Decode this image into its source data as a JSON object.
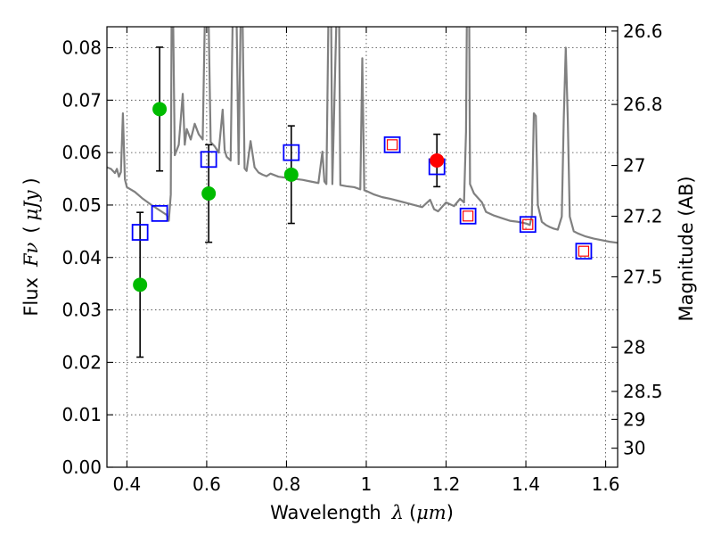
{
  "chart_data": {
    "type": "scatter",
    "title": "",
    "xlabel": {
      "prefix": "Wavelength",
      "symbol": "λ",
      "unit_open": "(",
      "unit": "μm",
      "unit_close": ")"
    },
    "ylabel": {
      "prefix": "Flux",
      "symbol": "Fν",
      "unit_open": "(",
      "unit": "μJy",
      "unit_close": ")"
    },
    "ylabel_right": "Magnitude (AB)",
    "xlim": [
      0.35,
      1.63
    ],
    "ylim": [
      0.0,
      0.084
    ],
    "grid": true,
    "x_ticks": [
      {
        "value": 0.4,
        "label": "0.4"
      },
      {
        "value": 0.6,
        "label": "0.6"
      },
      {
        "value": 0.8,
        "label": "0.8"
      },
      {
        "value": 1.0,
        "label": "1"
      },
      {
        "value": 1.2,
        "label": "1.2"
      },
      {
        "value": 1.4,
        "label": "1.4"
      },
      {
        "value": 1.6,
        "label": "1.6"
      }
    ],
    "y_ticks": [
      {
        "value": 0.0,
        "label": "0.00"
      },
      {
        "value": 0.01,
        "label": "0.01"
      },
      {
        "value": 0.02,
        "label": "0.02"
      },
      {
        "value": 0.03,
        "label": "0.03"
      },
      {
        "value": 0.04,
        "label": "0.04"
      },
      {
        "value": 0.05,
        "label": "0.05"
      },
      {
        "value": 0.06,
        "label": "0.06"
      },
      {
        "value": 0.07,
        "label": "0.07"
      },
      {
        "value": 0.08,
        "label": "0.08"
      }
    ],
    "mag_ticks": [
      {
        "mag": 26.6,
        "label": "26.6"
      },
      {
        "mag": 26.8,
        "label": "26.8"
      },
      {
        "mag": 27.0,
        "label": "27"
      },
      {
        "mag": 27.2,
        "label": "27.2"
      },
      {
        "mag": 27.5,
        "label": "27.5"
      },
      {
        "mag": 28.0,
        "label": "28"
      },
      {
        "mag": 28.5,
        "label": "28.5"
      },
      {
        "mag": 29.0,
        "label": "29"
      },
      {
        "mag": 30.0,
        "label": "30"
      }
    ],
    "series": [
      {
        "name": "model spectrum",
        "kind": "line",
        "color": "#808080",
        "points": [
          [
            0.35,
            0.0572
          ],
          [
            0.36,
            0.0569
          ],
          [
            0.37,
            0.0561
          ],
          [
            0.375,
            0.0569
          ],
          [
            0.38,
            0.0554
          ],
          [
            0.385,
            0.0563
          ],
          [
            0.39,
            0.0675
          ],
          [
            0.395,
            0.0549
          ],
          [
            0.4,
            0.0534
          ],
          [
            0.42,
            0.0525
          ],
          [
            0.44,
            0.0512
          ],
          [
            0.46,
            0.0501
          ],
          [
            0.48,
            0.0491
          ],
          [
            0.5,
            0.0481
          ],
          [
            0.505,
            0.047
          ],
          [
            0.51,
            0.052
          ],
          [
            0.512,
            0.085
          ],
          [
            0.516,
            0.085
          ],
          [
            0.52,
            0.0595
          ],
          [
            0.53,
            0.0615
          ],
          [
            0.54,
            0.0712
          ],
          [
            0.545,
            0.0615
          ],
          [
            0.55,
            0.0645
          ],
          [
            0.56,
            0.0625
          ],
          [
            0.57,
            0.0655
          ],
          [
            0.58,
            0.0635
          ],
          [
            0.59,
            0.0625
          ],
          [
            0.595,
            0.084
          ],
          [
            0.6,
            0.085
          ],
          [
            0.605,
            0.0845
          ],
          [
            0.61,
            0.062
          ],
          [
            0.62,
            0.0612
          ],
          [
            0.63,
            0.06
          ],
          [
            0.64,
            0.0682
          ],
          [
            0.645,
            0.0605
          ],
          [
            0.65,
            0.0592
          ],
          [
            0.66,
            0.0585
          ],
          [
            0.665,
            0.085
          ],
          [
            0.675,
            0.085
          ],
          [
            0.68,
            0.0578
          ],
          [
            0.685,
            0.085
          ],
          [
            0.69,
            0.085
          ],
          [
            0.695,
            0.057
          ],
          [
            0.7,
            0.0565
          ],
          [
            0.71,
            0.0622
          ],
          [
            0.72,
            0.0572
          ],
          [
            0.73,
            0.0562
          ],
          [
            0.74,
            0.0558
          ],
          [
            0.75,
            0.0555
          ],
          [
            0.76,
            0.056
          ],
          [
            0.78,
            0.0554
          ],
          [
            0.8,
            0.0552
          ],
          [
            0.82,
            0.055
          ],
          [
            0.84,
            0.0548
          ],
          [
            0.86,
            0.0545
          ],
          [
            0.88,
            0.0542
          ],
          [
            0.89,
            0.0602
          ],
          [
            0.895,
            0.0545
          ],
          [
            0.9,
            0.054
          ],
          [
            0.905,
            0.085
          ],
          [
            0.912,
            0.085
          ],
          [
            0.915,
            0.054
          ],
          [
            0.925,
            0.085
          ],
          [
            0.932,
            0.085
          ],
          [
            0.935,
            0.0538
          ],
          [
            0.95,
            0.0536
          ],
          [
            0.97,
            0.0534
          ],
          [
            0.985,
            0.053
          ],
          [
            0.99,
            0.078
          ],
          [
            0.995,
            0.0528
          ],
          [
            1.0,
            0.0527
          ],
          [
            1.02,
            0.052
          ],
          [
            1.04,
            0.0515
          ],
          [
            1.06,
            0.0512
          ],
          [
            1.08,
            0.0508
          ],
          [
            1.1,
            0.0504
          ],
          [
            1.12,
            0.05
          ],
          [
            1.14,
            0.0496
          ],
          [
            1.16,
            0.051
          ],
          [
            1.17,
            0.0492
          ],
          [
            1.18,
            0.0488
          ],
          [
            1.2,
            0.0505
          ],
          [
            1.22,
            0.0498
          ],
          [
            1.235,
            0.0512
          ],
          [
            1.245,
            0.0505
          ],
          [
            1.25,
            0.064
          ],
          [
            1.252,
            0.085
          ],
          [
            1.258,
            0.085
          ],
          [
            1.26,
            0.054
          ],
          [
            1.27,
            0.0522
          ],
          [
            1.29,
            0.0505
          ],
          [
            1.3,
            0.0487
          ],
          [
            1.32,
            0.048
          ],
          [
            1.34,
            0.0475
          ],
          [
            1.36,
            0.047
          ],
          [
            1.38,
            0.0468
          ],
          [
            1.4,
            0.0465
          ],
          [
            1.41,
            0.0462
          ],
          [
            1.415,
            0.048
          ],
          [
            1.42,
            0.0675
          ],
          [
            1.425,
            0.067
          ],
          [
            1.43,
            0.05
          ],
          [
            1.44,
            0.0468
          ],
          [
            1.45,
            0.0462
          ],
          [
            1.46,
            0.0458
          ],
          [
            1.47,
            0.0455
          ],
          [
            1.48,
            0.0453
          ],
          [
            1.49,
            0.0478
          ],
          [
            1.495,
            0.0665
          ],
          [
            1.5,
            0.08
          ],
          [
            1.505,
            0.0665
          ],
          [
            1.51,
            0.0478
          ],
          [
            1.52,
            0.045
          ],
          [
            1.53,
            0.0446
          ],
          [
            1.54,
            0.0443
          ],
          [
            1.55,
            0.044
          ],
          [
            1.57,
            0.0436
          ],
          [
            1.59,
            0.0433
          ],
          [
            1.61,
            0.043
          ],
          [
            1.63,
            0.0428
          ]
        ]
      },
      {
        "name": "observed photometry",
        "kind": "errorbar",
        "color": "#00bb00",
        "points": [
          {
            "x": 0.433,
            "y": 0.0348,
            "err": 0.0138
          },
          {
            "x": 0.482,
            "y": 0.0683,
            "err": 0.0118
          },
          {
            "x": 0.605,
            "y": 0.0522,
            "err": 0.0093
          },
          {
            "x": 0.812,
            "y": 0.0558,
            "err": 0.0093
          }
        ]
      },
      {
        "name": "observed photometry (red)",
        "kind": "errorbar",
        "color": "#ff0000",
        "points": [
          {
            "x": 1.177,
            "y": 0.0585,
            "err": 0.005
          }
        ]
      },
      {
        "name": "model photometry",
        "kind": "square",
        "color": "#0000ff",
        "points": [
          [
            0.433,
            0.0448
          ],
          [
            0.482,
            0.0484
          ],
          [
            0.605,
            0.0587
          ],
          [
            0.812,
            0.06
          ],
          [
            1.065,
            0.0615
          ],
          [
            1.177,
            0.0573
          ],
          [
            1.255,
            0.0479
          ],
          [
            1.405,
            0.0463
          ],
          [
            1.545,
            0.0412
          ]
        ]
      },
      {
        "name": "model photometry (red)",
        "kind": "small-square",
        "color": "#ff0000",
        "points": [
          [
            1.065,
            0.0615
          ],
          [
            1.255,
            0.0479
          ],
          [
            1.405,
            0.0463
          ],
          [
            1.545,
            0.0412
          ]
        ]
      }
    ]
  }
}
